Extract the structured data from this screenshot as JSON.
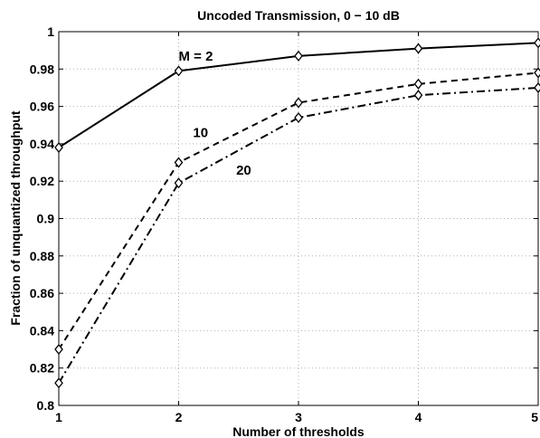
{
  "chart_data": {
    "type": "line",
    "title": "Uncoded Transmission, 0 − 10 dB",
    "xlabel": "Number of thresholds",
    "ylabel": "Fraction of unquantized throughput",
    "x": [
      1,
      2,
      3,
      4,
      5
    ],
    "xlim": [
      1,
      5
    ],
    "ylim": [
      0.8,
      1.0
    ],
    "xticks": [
      "1",
      "2",
      "3",
      "4",
      "5"
    ],
    "yticks": [
      "0.8",
      "0.82",
      "0.84",
      "0.86",
      "0.88",
      "0.9",
      "0.92",
      "0.94",
      "0.96",
      "0.98",
      "1"
    ],
    "grid": true,
    "legend": "none (inline labels)",
    "series": [
      {
        "name": "M = 2",
        "style": "solid",
        "marker": "diamond",
        "values": [
          0.938,
          0.979,
          0.987,
          0.991,
          0.994
        ]
      },
      {
        "name": "10",
        "style": "dashed",
        "marker": "diamond",
        "values": [
          0.83,
          0.93,
          0.962,
          0.972,
          0.978
        ]
      },
      {
        "name": "20",
        "style": "dashdot",
        "marker": "diamond",
        "values": [
          0.812,
          0.919,
          0.954,
          0.966,
          0.97
        ]
      }
    ],
    "colors": {
      "line": "#000000",
      "grid": "#b0b0b0",
      "background": "#ffffff"
    }
  }
}
